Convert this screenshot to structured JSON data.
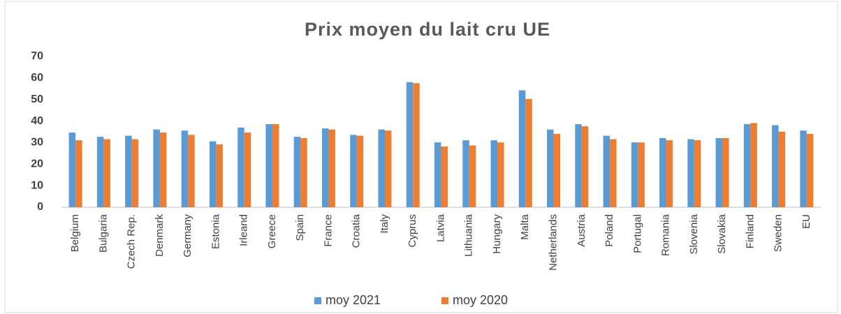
{
  "chart_data": {
    "type": "bar",
    "title": "Prix moyen du lait cru UE",
    "categories": [
      "Belgium",
      "Bulgaria",
      "Czech Rep.",
      "Denmark",
      "Germany",
      "Estonia",
      "Irleand",
      "Greece",
      "Spain",
      "France",
      "Croatia",
      "Italy",
      "Cyprus",
      "Latvia",
      "Lithuania",
      "Hungary",
      "Malta",
      "Netherlands",
      "Austria",
      "Poland",
      "Portugal",
      "Romania",
      "Slovenia",
      "Slovakia",
      "Finland",
      "Sweden",
      "EU"
    ],
    "series": [
      {
        "name": "moy 2021",
        "color": "#5b9bd5",
        "values": [
          34.7,
          32.7,
          33.2,
          36.1,
          35.6,
          30.6,
          37.0,
          38.6,
          32.7,
          36.6,
          33.6,
          36.1,
          58.1,
          30.1,
          31.1,
          31.1,
          54.3,
          36.1,
          38.6,
          33.2,
          30.1,
          32.1,
          31.6,
          32.1,
          38.6,
          38.1,
          35.6
        ]
      },
      {
        "name": "moy 2020",
        "color": "#ed7d31",
        "values": [
          31.1,
          31.6,
          31.6,
          34.7,
          33.6,
          29.2,
          34.7,
          38.6,
          32.1,
          36.1,
          33.2,
          35.6,
          57.6,
          28.2,
          28.7,
          30.1,
          50.3,
          34.1,
          37.6,
          31.6,
          30.1,
          31.1,
          31.1,
          32.1,
          39.1,
          35.1,
          34.1
        ]
      }
    ],
    "ylim": [
      0,
      70
    ],
    "yticks": [
      0,
      10,
      20,
      30,
      40,
      50,
      60,
      70
    ],
    "grid": false,
    "legend": "bottom"
  }
}
